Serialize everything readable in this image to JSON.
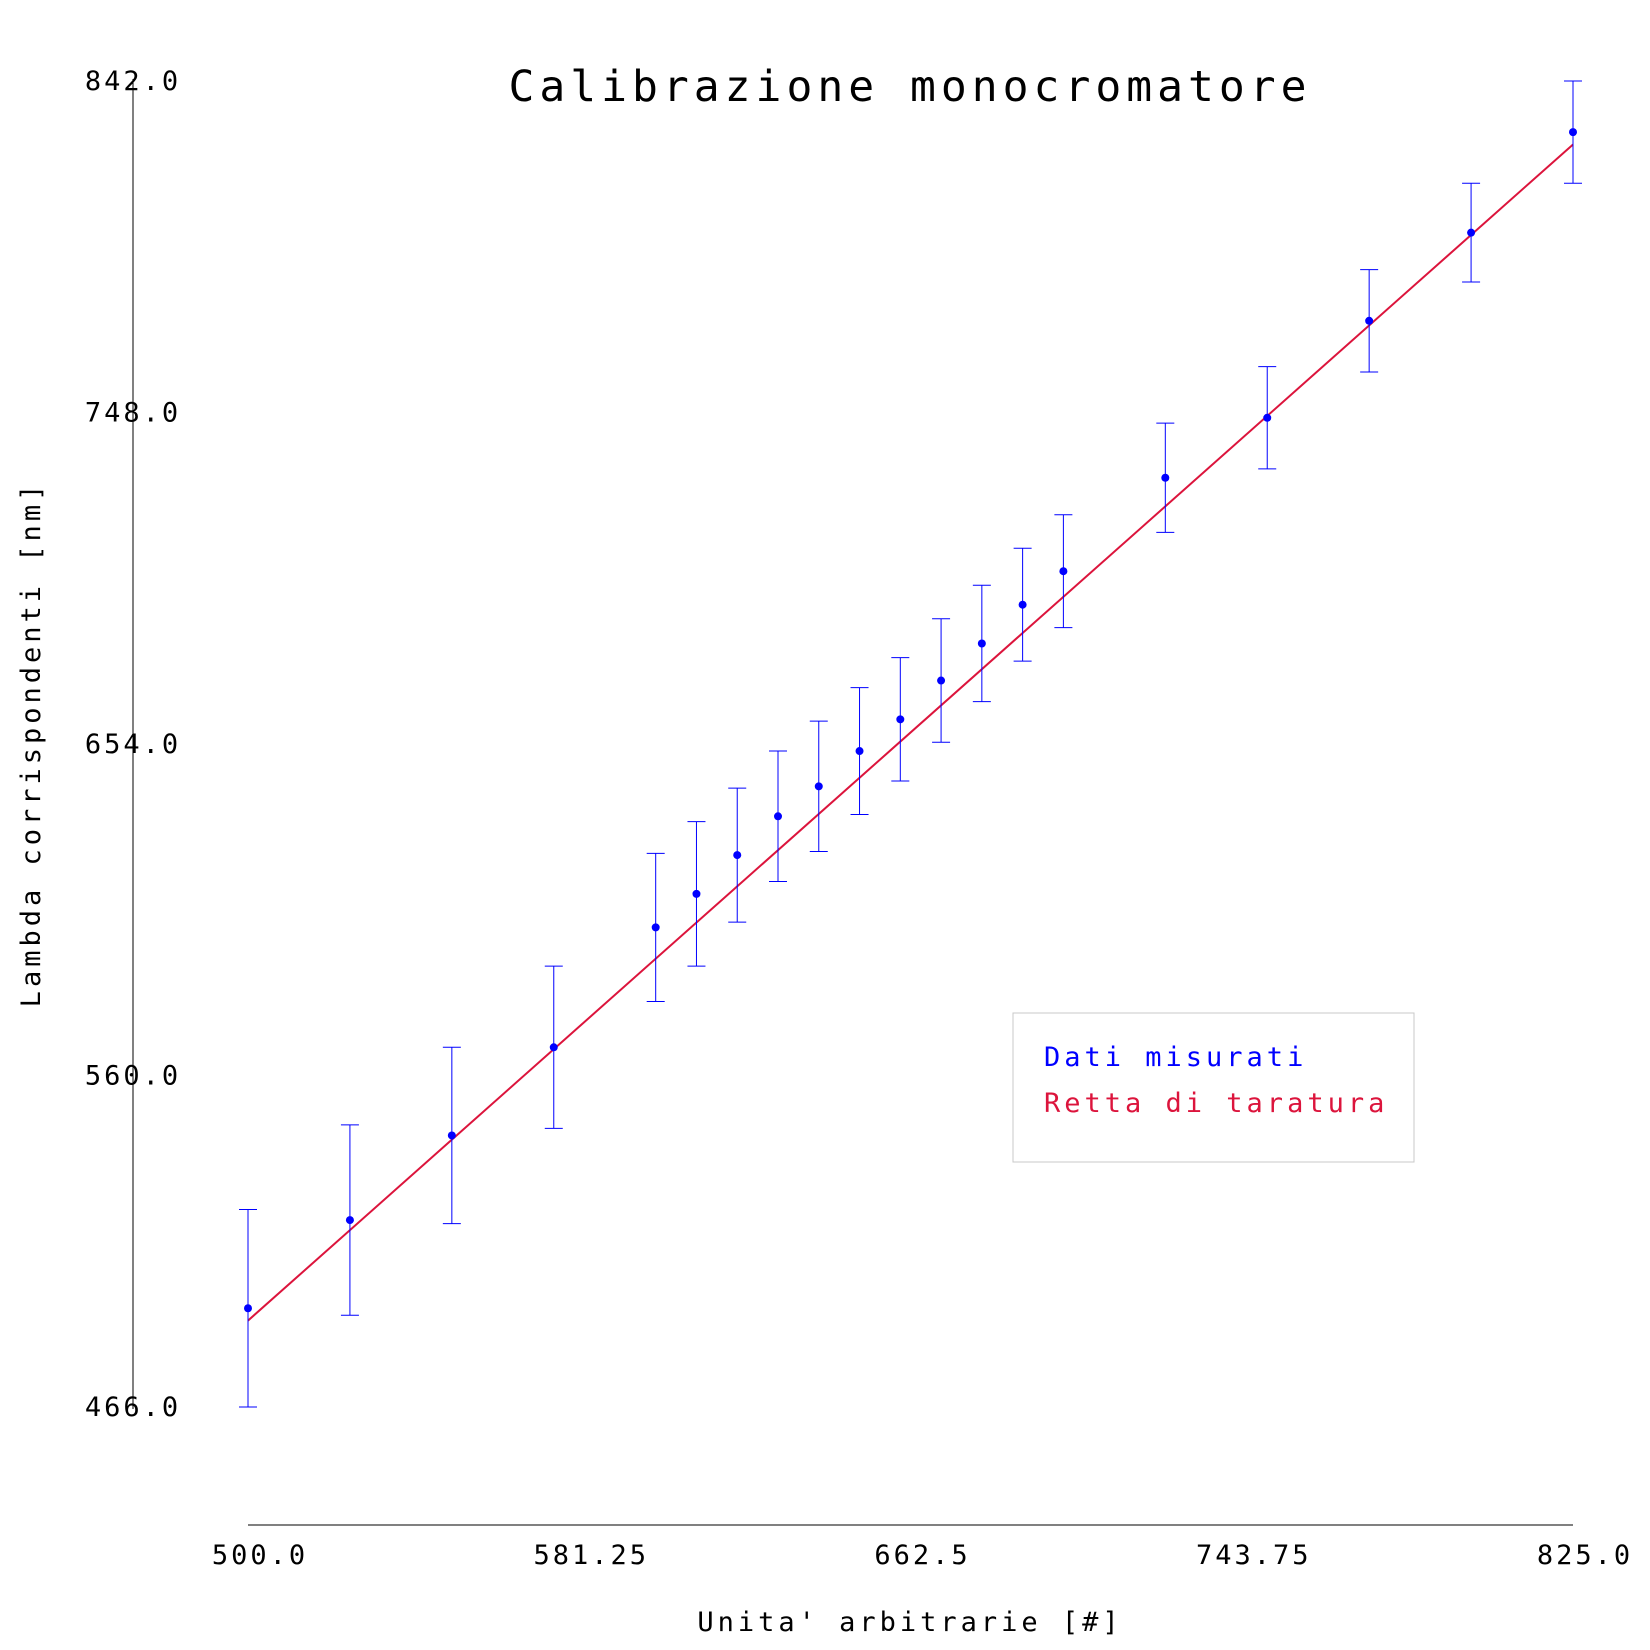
{
  "chart_data": {
    "type": "scatter",
    "title": "Calibrazione monocromatore",
    "xlabel": "Unita' arbitrarie [#]",
    "ylabel": "Lambda corrispondenti [nm]",
    "xlim": [
      500.0,
      825.0
    ],
    "ylim": [
      466.0,
      842.0
    ],
    "x_ticks": [
      "500.0",
      "581.25",
      "662.5",
      "743.75",
      "825.0"
    ],
    "y_ticks": [
      "466.0",
      "560.0",
      "654.0",
      "748.0",
      "842.0"
    ],
    "grid": false,
    "legend_position": "lower-right",
    "series": [
      {
        "name": "Dati misurati",
        "kind": "points-with-errorbars",
        "color": "#0000ff",
        "points": [
          {
            "x": 500.0,
            "y": 494.0,
            "err": 28.0
          },
          {
            "x": 525.0,
            "y": 519.0,
            "err": 27.0
          },
          {
            "x": 550.0,
            "y": 543.0,
            "err": 25.0
          },
          {
            "x": 575.0,
            "y": 568.0,
            "err": 23.0
          },
          {
            "x": 600.0,
            "y": 602.0,
            "err": 21.0
          },
          {
            "x": 610.0,
            "y": 611.5,
            "err": 20.5
          },
          {
            "x": 620.0,
            "y": 622.5,
            "err": 19.0
          },
          {
            "x": 630.0,
            "y": 633.5,
            "err": 18.5
          },
          {
            "x": 640.0,
            "y": 642.0,
            "err": 18.5
          },
          {
            "x": 650.0,
            "y": 652.0,
            "err": 18.0
          },
          {
            "x": 660.0,
            "y": 661.0,
            "err": 17.5
          },
          {
            "x": 670.0,
            "y": 672.0,
            "err": 17.5
          },
          {
            "x": 680.0,
            "y": 682.5,
            "err": 16.5
          },
          {
            "x": 690.0,
            "y": 693.5,
            "err": 16.0
          },
          {
            "x": 700.0,
            "y": 703.0,
            "err": 16.0
          },
          {
            "x": 725.0,
            "y": 729.5,
            "err": 15.5
          },
          {
            "x": 750.0,
            "y": 746.5,
            "err": 14.5
          },
          {
            "x": 775.0,
            "y": 774.0,
            "err": 14.5
          },
          {
            "x": 800.0,
            "y": 799.0,
            "err": 14.0
          },
          {
            "x": 825.0,
            "y": 827.5,
            "err": 14.5
          }
        ]
      },
      {
        "name": "Retta di taratura",
        "kind": "line",
        "color": "#dc143c",
        "points": [
          {
            "x": 500.0,
            "y": 490.5
          },
          {
            "x": 825.0,
            "y": 824.0
          }
        ]
      }
    ]
  }
}
